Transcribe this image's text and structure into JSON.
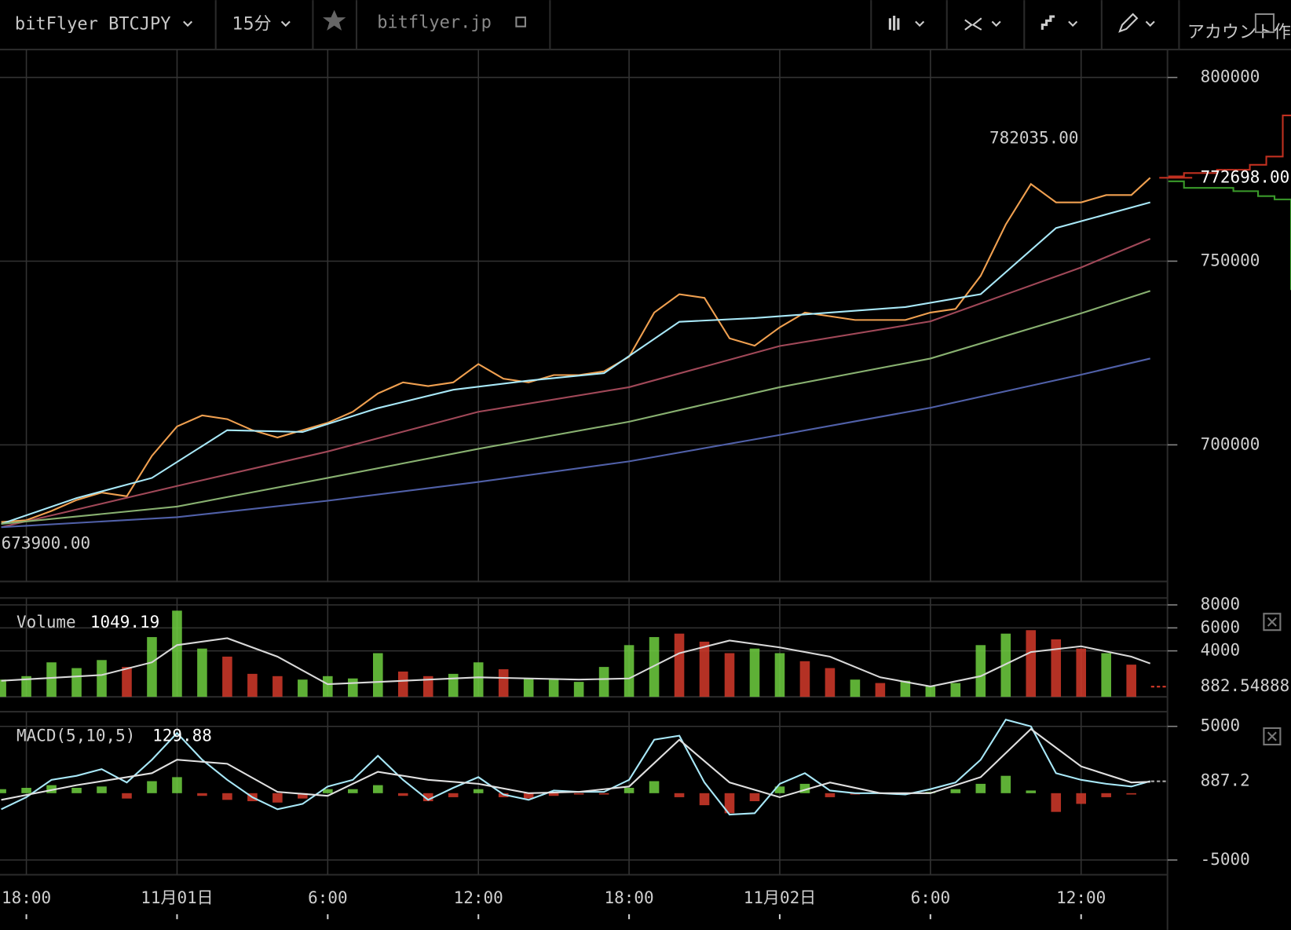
{
  "header": {
    "symbol": "bitFlyer BTCJPY",
    "interval": "15分",
    "site": "bitflyer.jp",
    "account": "アカウント作"
  },
  "chart_data": [
    {
      "type": "line",
      "xlim": [
        -7.05,
        39.44
      ],
      "xticks": [
        {
          "value": -6,
          "label": "18:00"
        },
        {
          "value": 0,
          "label": "11月01日"
        },
        {
          "value": 6,
          "label": "6:00"
        },
        {
          "value": 12,
          "label": "12:00"
        },
        {
          "value": 18,
          "label": "18:00"
        },
        {
          "value": 24,
          "label": "11月02日"
        },
        {
          "value": 30,
          "label": "6:00"
        },
        {
          "value": 36,
          "label": "12:00"
        }
      ],
      "ylim": [
        662800,
        807600
      ],
      "yticks": [
        800000,
        750000,
        700000
      ],
      "grid": true,
      "series": [
        {
          "color": "#f0a050",
          "x": [
            -7,
            -6,
            -5,
            -4,
            -3,
            -2,
            -1,
            0,
            1,
            2,
            3,
            4,
            5,
            6,
            7,
            8,
            9,
            10,
            11,
            12,
            13,
            14,
            15,
            16,
            17,
            18,
            19,
            20,
            21,
            22,
            23,
            24,
            25,
            26,
            27,
            28,
            29,
            30,
            31,
            32,
            33,
            34,
            35,
            36,
            37,
            38,
            38.75
          ],
          "values": [
            679000,
            679500,
            682000,
            685000,
            687000,
            686000,
            697000,
            705000,
            708000,
            707000,
            704000,
            702000,
            704000,
            706000,
            709000,
            714000,
            717000,
            716000,
            717000,
            722000,
            718000,
            717000,
            719000,
            719000,
            720000,
            724000,
            736000,
            741000,
            740000,
            729000,
            727000,
            732000,
            736000,
            735000,
            734000,
            734000,
            734000,
            736000,
            737000,
            746000,
            760000,
            771000,
            766000,
            766000,
            768000,
            768000,
            772698
          ]
        },
        {
          "color": "#a8e8f8",
          "x": [
            -7,
            -4,
            -1,
            2,
            5,
            8,
            11,
            14,
            17,
            20,
            23,
            26,
            29,
            32,
            35,
            38.75
          ],
          "values": [
            678500,
            685500,
            691000,
            704000,
            703500,
            710000,
            715000,
            717500,
            719500,
            733500,
            734500,
            736000,
            737500,
            741000,
            759000,
            766000
          ]
        },
        {
          "color": "#a04858",
          "x": [
            -7,
            0,
            6,
            12,
            18,
            24,
            30,
            36,
            38.75
          ],
          "values": [
            677600,
            688800,
            698200,
            709000,
            715700,
            726900,
            733600,
            748300,
            756100
          ]
        },
        {
          "color": "#88b070",
          "x": [
            -7,
            0,
            6,
            12,
            18,
            24,
            30,
            36,
            38.75
          ],
          "values": [
            678500,
            683200,
            691000,
            698900,
            706300,
            715700,
            723500,
            735800,
            741900
          ]
        },
        {
          "color": "#5060a8",
          "x": [
            -7,
            0,
            6,
            12,
            18,
            24,
            30,
            36,
            38.75
          ],
          "values": [
            677600,
            680300,
            684800,
            689900,
            695500,
            702700,
            710100,
            719100,
            723500
          ]
        }
      ],
      "high": {
        "x": 35.9,
        "value": 782035,
        "label": "782035.00"
      },
      "low": {
        "x": -7,
        "value": 673900,
        "label": "673900.00"
      },
      "last": {
        "value": 772698,
        "label": "772698.00"
      }
    },
    {
      "type": "bar",
      "title": "Volume",
      "readout": 1049.19,
      "ylim": [
        0,
        8600
      ],
      "yticks": [
        8000,
        6000,
        4000
      ],
      "grid": true,
      "last": 882.54888,
      "series": [
        {
          "type": "bar",
          "x": [
            -7,
            -6,
            -5,
            -4,
            -3,
            -2,
            -1,
            0,
            1,
            2,
            3,
            4,
            5,
            6,
            7,
            8,
            9,
            10,
            11,
            12,
            13,
            14,
            15,
            16,
            17,
            18,
            19,
            20,
            21,
            22,
            23,
            24,
            25,
            26,
            27,
            28,
            29,
            30,
            31,
            32,
            33,
            34,
            35,
            36,
            37,
            38
          ],
          "values": [
            1500,
            1800,
            3000,
            2500,
            3200,
            2600,
            5200,
            7500,
            4200,
            3500,
            2000,
            1800,
            1500,
            1800,
            1600,
            3800,
            2200,
            1800,
            2000,
            3000,
            2400,
            1600,
            1500,
            1300,
            2600,
            4500,
            5200,
            5500,
            4800,
            3800,
            4200,
            3800,
            3100,
            2500,
            1500,
            1200,
            1400,
            900,
            1200,
            4500,
            5500,
            5800,
            5000,
            4200,
            3800,
            2800
          ],
          "colors": [
            "#6fcf3f",
            "#6fcf3f",
            "#6fcf3f",
            "#6fcf3f",
            "#6fcf3f",
            "#d33a2a",
            "#6fcf3f",
            "#6fcf3f",
            "#6fcf3f",
            "#d33a2a",
            "#d33a2a",
            "#d33a2a",
            "#6fcf3f",
            "#6fcf3f",
            "#6fcf3f",
            "#6fcf3f",
            "#d33a2a",
            "#d33a2a",
            "#6fcf3f",
            "#6fcf3f",
            "#d33a2a",
            "#6fcf3f",
            "#6fcf3f",
            "#6fcf3f",
            "#6fcf3f",
            "#6fcf3f",
            "#6fcf3f",
            "#d33a2a",
            "#d33a2a",
            "#d33a2a",
            "#6fcf3f",
            "#6fcf3f",
            "#d33a2a",
            "#d33a2a",
            "#6fcf3f",
            "#d33a2a",
            "#6fcf3f",
            "#6fcf3f",
            "#6fcf3f",
            "#6fcf3f",
            "#6fcf3f",
            "#d33a2a",
            "#d33a2a",
            "#d33a2a",
            "#6fcf3f",
            "#d33a2a"
          ]
        },
        {
          "color": "#d8d8d8",
          "x": [
            -7,
            -3,
            -1,
            0,
            2,
            4,
            6,
            8,
            12,
            16,
            18,
            20,
            22,
            24,
            26,
            28,
            30,
            32,
            34,
            36,
            38,
            38.75
          ],
          "values": [
            1400,
            1900,
            3000,
            4500,
            5100,
            3500,
            1100,
            1300,
            1700,
            1500,
            1600,
            3800,
            4900,
            4300,
            3500,
            1700,
            900,
            1800,
            3900,
            4400,
            3500,
            2900
          ]
        }
      ]
    },
    {
      "type": "line",
      "title": "MACD(5,10,5)",
      "readout": 129.88,
      "ylim": [
        -6100,
        6100
      ],
      "yticks": [
        5000,
        -5000
      ],
      "grid": true,
      "last": 887.2,
      "up_color": "#6fcf3f",
      "down_color": "#d33a2a",
      "series": [
        {
          "type": "bar",
          "x": [
            -7,
            -6,
            -5,
            -4,
            -3,
            -2,
            -1,
            0,
            1,
            2,
            3,
            4,
            5,
            6,
            7,
            8,
            9,
            10,
            11,
            12,
            13,
            14,
            15,
            16,
            17,
            18,
            19,
            20,
            21,
            22,
            23,
            24,
            25,
            26,
            27,
            28,
            29,
            30,
            31,
            32,
            33,
            34,
            35,
            36,
            37,
            38
          ],
          "values": [
            300,
            400,
            600,
            400,
            500,
            -400,
            900,
            1200,
            -200,
            -500,
            -600,
            -700,
            -400,
            300,
            300,
            600,
            -200,
            -600,
            -300,
            300,
            -300,
            -400,
            -200,
            -100,
            -100,
            400,
            900,
            -300,
            -900,
            -1500,
            -600,
            500,
            700,
            -300,
            -100,
            0,
            -100,
            100,
            300,
            700,
            1300,
            200,
            -1400,
            -800,
            -300,
            -100
          ]
        },
        {
          "color": "#a8e8f8",
          "x": [
            -7,
            -6,
            -5,
            -4,
            -3,
            -2,
            -1,
            0,
            1,
            2,
            3,
            4,
            5,
            6,
            7,
            8,
            9,
            10,
            11,
            12,
            13,
            14,
            15,
            16,
            17,
            18,
            19,
            20,
            21,
            22,
            23,
            24,
            25,
            26,
            27,
            28,
            29,
            30,
            31,
            32,
            33,
            34,
            35,
            36,
            37,
            38,
            38.75
          ],
          "values": [
            -1200,
            -300,
            1000,
            1300,
            1800,
            800,
            2500,
            4500,
            2500,
            1000,
            -300,
            -1200,
            -800,
            500,
            1000,
            2800,
            1000,
            -500,
            400,
            1200,
            -100,
            -500,
            200,
            100,
            100,
            1000,
            4000,
            4300,
            800,
            -1600,
            -1500,
            700,
            1500,
            200,
            0,
            0,
            -100,
            300,
            800,
            2500,
            5500,
            5000,
            1500,
            1000,
            700,
            500,
            900
          ]
        },
        {
          "color": "#e0e0e0",
          "x": [
            -7,
            -4,
            -1,
            0,
            2,
            4,
            6,
            8,
            10,
            12,
            14,
            16,
            18,
            20,
            22,
            24,
            26,
            28,
            30,
            32,
            34,
            36,
            38,
            38.75
          ],
          "values": [
            -500,
            600,
            1500,
            2500,
            2200,
            100,
            -200,
            1600,
            1000,
            700,
            0,
            100,
            500,
            4000,
            800,
            -300,
            800,
            0,
            0,
            1200,
            4800,
            2000,
            800,
            850
          ]
        }
      ]
    }
  ]
}
